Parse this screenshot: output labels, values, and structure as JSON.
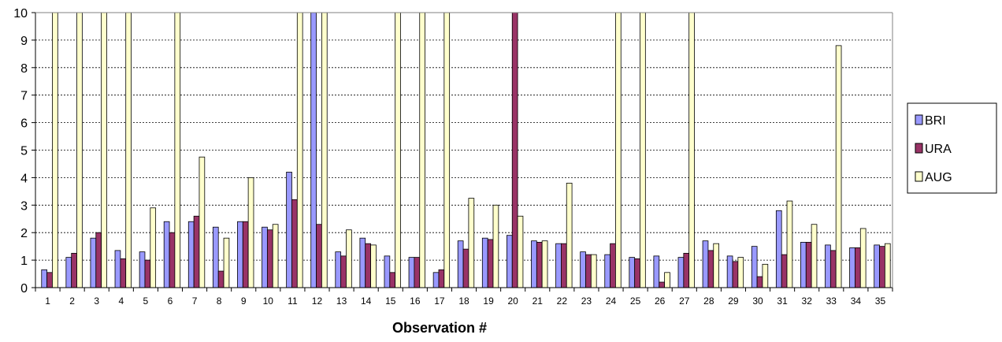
{
  "chart_data": {
    "type": "bar",
    "xlabel": "Observation #",
    "ylabel": "",
    "ylim": [
      0,
      10
    ],
    "yticks": [
      "0",
      "1",
      "2",
      "3",
      "4",
      "5",
      "6",
      "7",
      "8",
      "9",
      "10"
    ],
    "grid": "horizontal dashed",
    "legend_position": "right",
    "categories": [
      "1",
      "2",
      "3",
      "4",
      "5",
      "6",
      "7",
      "8",
      "9",
      "10",
      "11",
      "12",
      "13",
      "14",
      "15",
      "16",
      "17",
      "18",
      "19",
      "20",
      "21",
      "22",
      "23",
      "24",
      "25",
      "26",
      "27",
      "28",
      "29",
      "30",
      "31",
      "32",
      "33",
      "34",
      "35"
    ],
    "series": [
      {
        "name": "BRI",
        "color": "#9999ff",
        "values": [
          0.65,
          1.1,
          1.8,
          1.35,
          1.3,
          2.4,
          2.4,
          2.2,
          2.4,
          2.2,
          4.2,
          10,
          1.3,
          1.8,
          1.15,
          1.1,
          0.55,
          1.7,
          1.8,
          1.9,
          1.7,
          1.6,
          1.3,
          1.2,
          1.1,
          1.15,
          1.1,
          1.7,
          1.15,
          1.5,
          2.8,
          1.65,
          1.55,
          1.45,
          1.55
        ]
      },
      {
        "name": "URA",
        "color": "#993366",
        "values": [
          0.55,
          1.25,
          2.0,
          1.05,
          1.0,
          2.0,
          2.6,
          0.6,
          2.4,
          2.1,
          3.2,
          2.3,
          1.15,
          1.6,
          0.55,
          1.1,
          0.65,
          1.4,
          1.75,
          10,
          1.65,
          1.6,
          1.2,
          1.6,
          1.05,
          0.2,
          1.25,
          1.35,
          0.95,
          0.4,
          1.2,
          1.65,
          1.35,
          1.45,
          1.5
        ]
      },
      {
        "name": "AUG",
        "color": "#ffffcc",
        "values": [
          10,
          10,
          10,
          10,
          2.9,
          10,
          4.75,
          1.8,
          4.0,
          2.3,
          10,
          10,
          2.1,
          1.55,
          10,
          10,
          10,
          3.25,
          3.0,
          2.6,
          1.7,
          3.8,
          1.2,
          10,
          10,
          0.55,
          10,
          1.6,
          1.1,
          0.85,
          3.15,
          2.3,
          8.8,
          2.15,
          1.6
        ]
      }
    ]
  }
}
